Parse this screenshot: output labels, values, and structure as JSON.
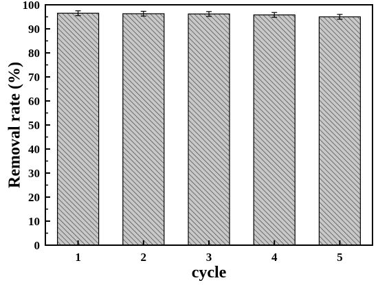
{
  "chart_data": {
    "type": "bar",
    "categories": [
      "1",
      "2",
      "3",
      "4",
      "5"
    ],
    "values": [
      96.5,
      96.3,
      96.2,
      95.8,
      95.0
    ],
    "errors": [
      1.0,
      1.0,
      1.0,
      1.0,
      1.0
    ],
    "title": "",
    "xlabel": "cycle",
    "ylabel": "Removal rate (%)",
    "ylim": [
      0,
      100
    ],
    "yticks": [
      0,
      10,
      20,
      30,
      40,
      50,
      60,
      70,
      80,
      90,
      100
    ],
    "grid": false,
    "legend": "none",
    "bar_fill": "#c8c8c8",
    "hatch_color": "#555555"
  }
}
